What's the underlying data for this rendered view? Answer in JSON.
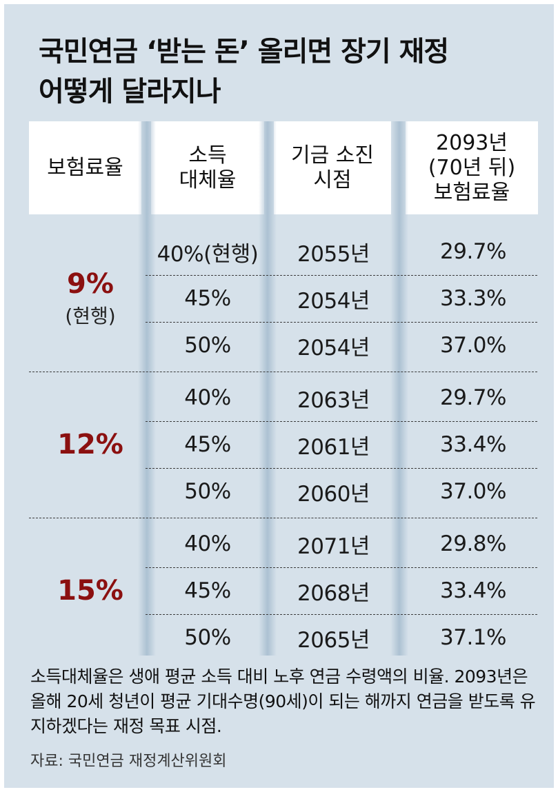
{
  "title_line1": "국민연금 ‘받는 돈’ 올리면 장기 재정",
  "title_line2": "어떻게 달라지나",
  "chart_data": {
    "type": "table",
    "columns": [
      "보험료율",
      "소득\n대체율",
      "기금 소진\n시점",
      "2093년\n(70년 뒤)\n보험료율"
    ],
    "groups": [
      {
        "rate": "9%",
        "rate_note": "(현행)",
        "rows": [
          {
            "replacement": "40%(현행)",
            "depletion": "2055년",
            "rate_2093": "29.7%"
          },
          {
            "replacement": "45%",
            "depletion": "2054년",
            "rate_2093": "33.3%"
          },
          {
            "replacement": "50%",
            "depletion": "2054년",
            "rate_2093": "37.0%"
          }
        ]
      },
      {
        "rate": "12%",
        "rate_note": "",
        "rows": [
          {
            "replacement": "40%",
            "depletion": "2063년",
            "rate_2093": "29.7%"
          },
          {
            "replacement": "45%",
            "depletion": "2061년",
            "rate_2093": "33.4%"
          },
          {
            "replacement": "50%",
            "depletion": "2060년",
            "rate_2093": "37.0%"
          }
        ]
      },
      {
        "rate": "15%",
        "rate_note": "",
        "rows": [
          {
            "replacement": "40%",
            "depletion": "2071년",
            "rate_2093": "29.8%"
          },
          {
            "replacement": "45%",
            "depletion": "2068년",
            "rate_2093": "33.4%"
          },
          {
            "replacement": "50%",
            "depletion": "2065년",
            "rate_2093": "37.1%"
          }
        ]
      }
    ]
  },
  "note": "소득대체율은 생애 평균 소득 대비 노후 연금 수령액의 비율. 2093년은 올해 20세 청년이 평균 기대수명(90세)이 되는 해까지 연금을 받도록 유지하겠다는 재정 목표 시점.",
  "source": "자료: 국민연금 재정계산위원회",
  "colors": {
    "background": "#d6e1ea",
    "rate_accent": "#8b1010",
    "header_bg": "#ffffff"
  }
}
